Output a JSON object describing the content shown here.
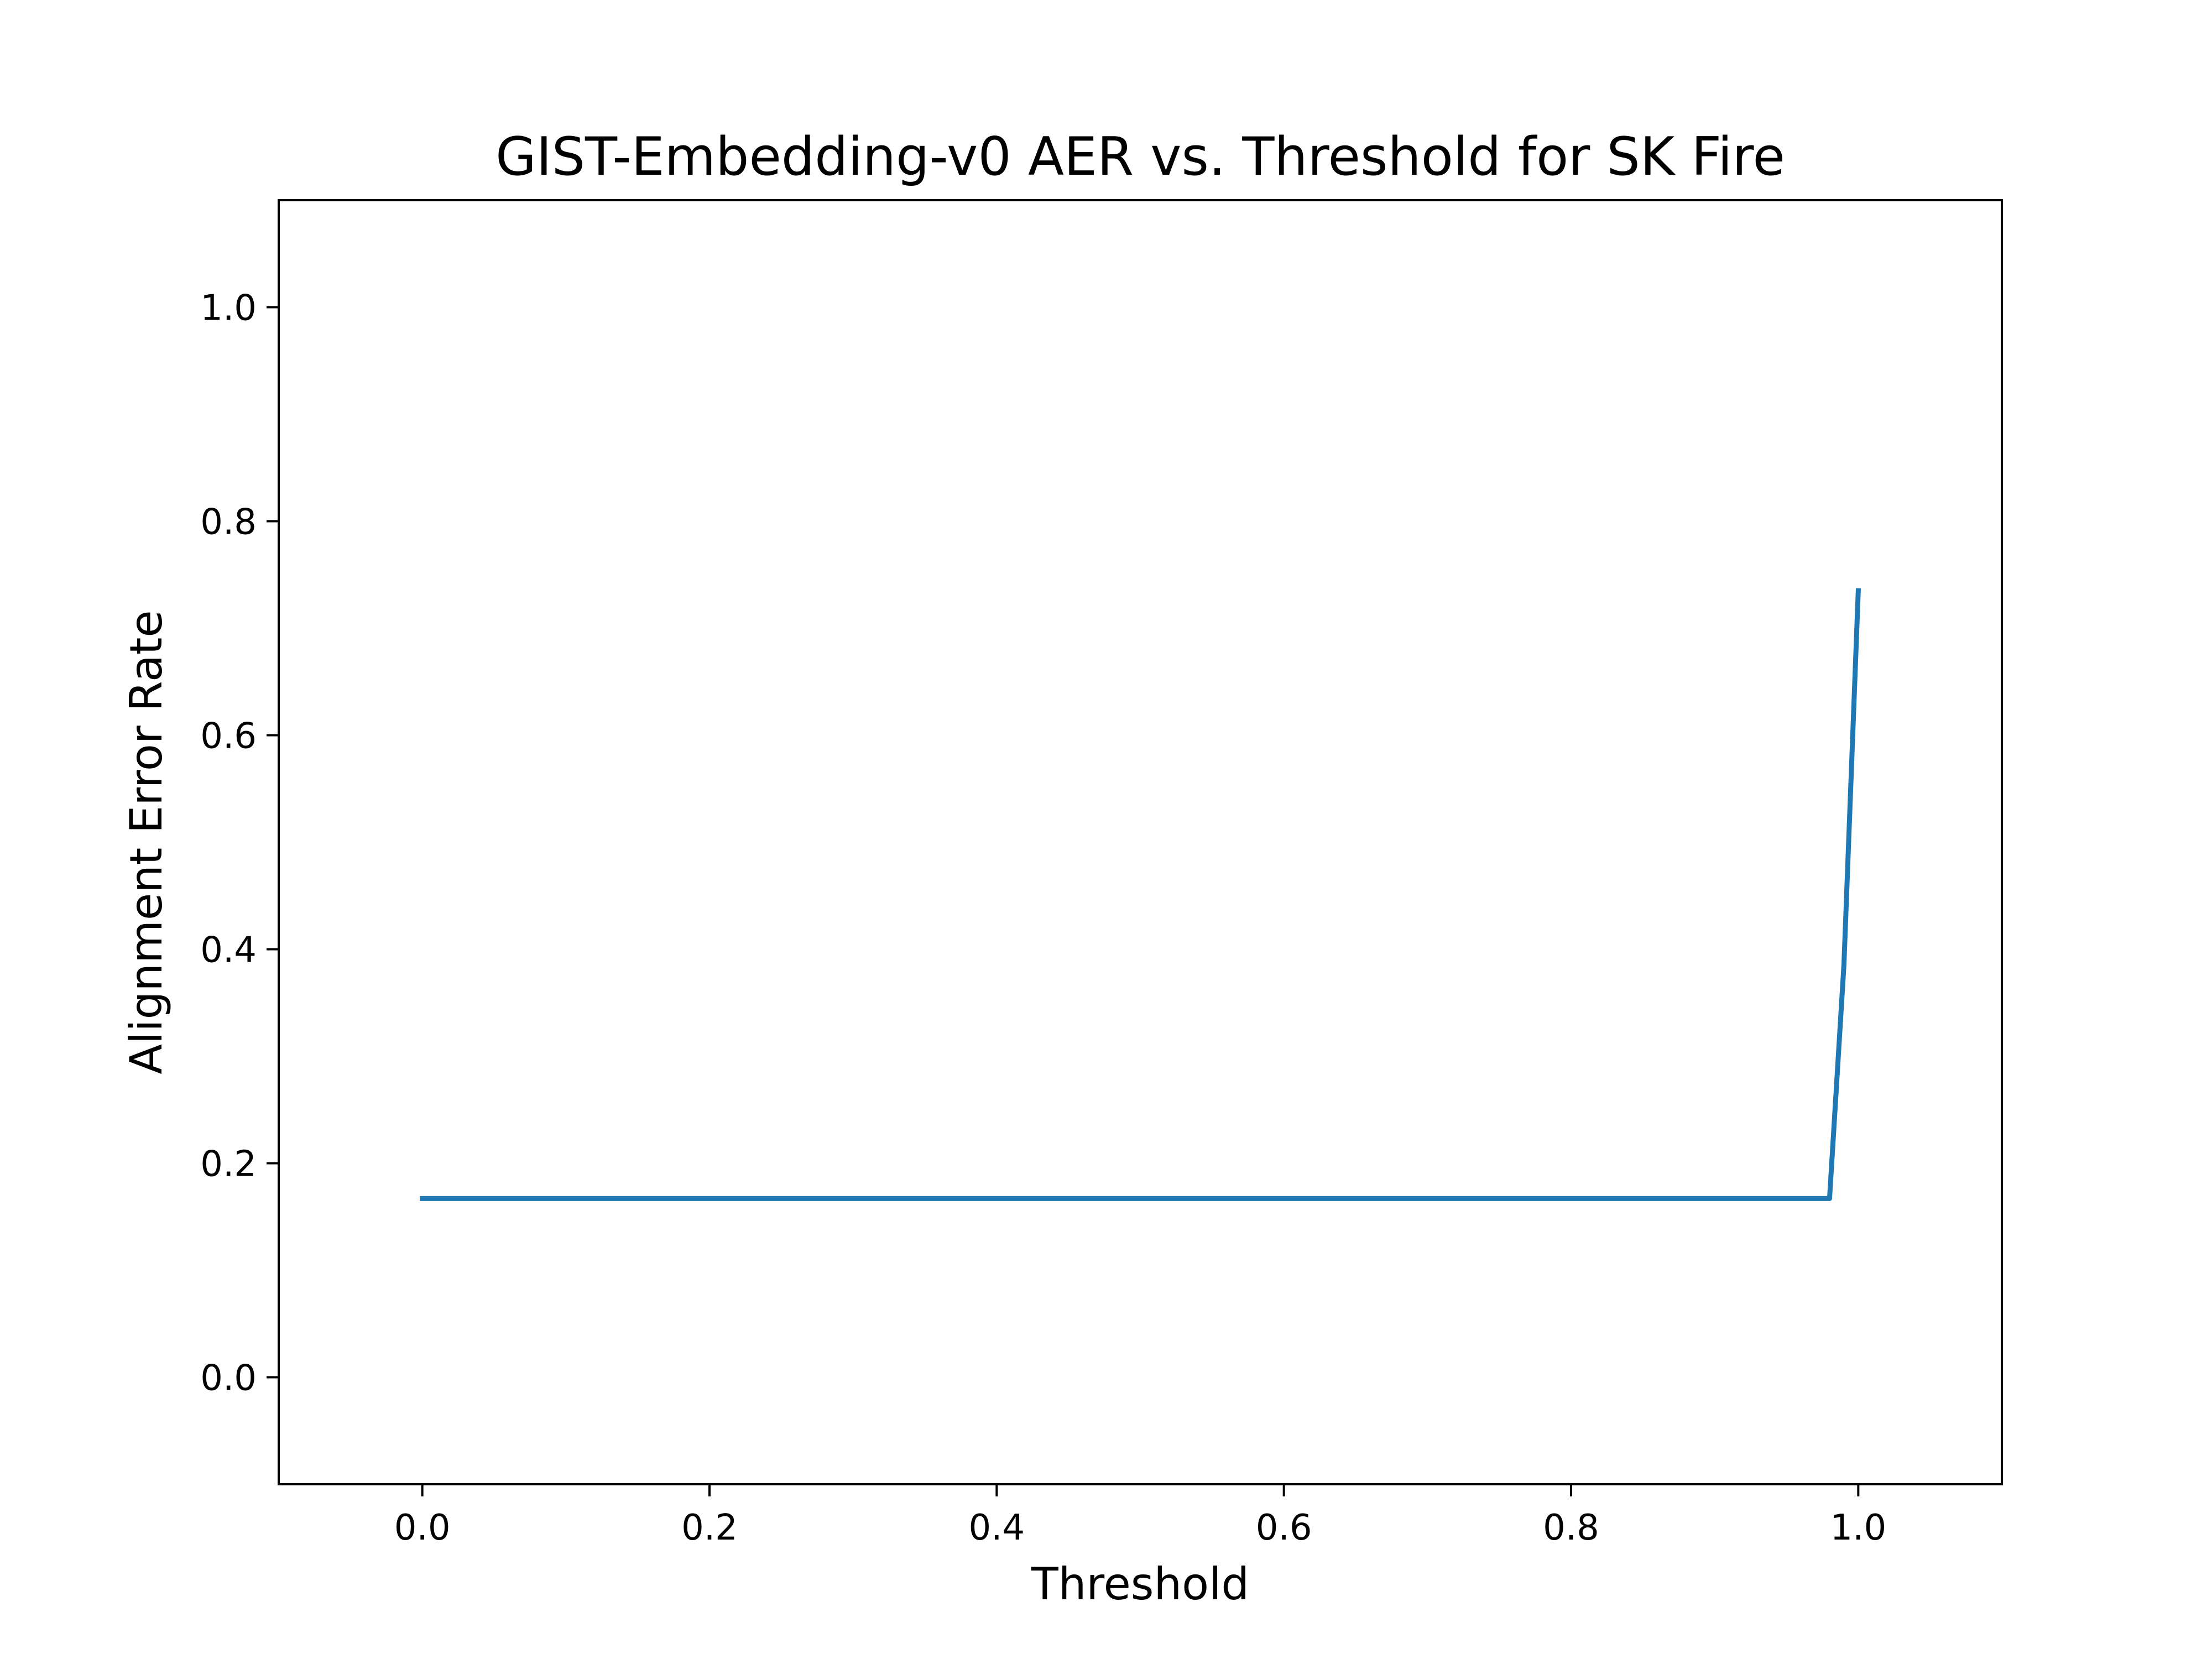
{
  "chart_data": {
    "type": "line",
    "title": "GIST-Embedding-v0 AER vs. Threshold for SK Fire",
    "xlabel": "Threshold",
    "ylabel": "Alignment Error Rate",
    "xlim": [
      -0.1,
      1.1
    ],
    "ylim": [
      -0.1,
      1.1
    ],
    "xticks": [
      0.0,
      0.2,
      0.4,
      0.6,
      0.8,
      1.0
    ],
    "yticks": [
      0.0,
      0.2,
      0.4,
      0.6,
      0.8,
      1.0
    ],
    "xtick_labels": [
      "0.0",
      "0.2",
      "0.4",
      "0.6",
      "0.8",
      "1.0"
    ],
    "ytick_labels": [
      "0.0",
      "0.2",
      "0.4",
      "0.6",
      "0.8",
      "1.0"
    ],
    "grid": false,
    "series": [
      {
        "color": "#1f77b4",
        "x": [
          0.0,
          0.1,
          0.2,
          0.3,
          0.4,
          0.5,
          0.6,
          0.7,
          0.8,
          0.9,
          0.98,
          0.99,
          1.0
        ],
        "y": [
          0.167,
          0.167,
          0.167,
          0.167,
          0.167,
          0.167,
          0.167,
          0.167,
          0.167,
          0.167,
          0.167,
          0.385,
          0.735
        ]
      }
    ]
  }
}
